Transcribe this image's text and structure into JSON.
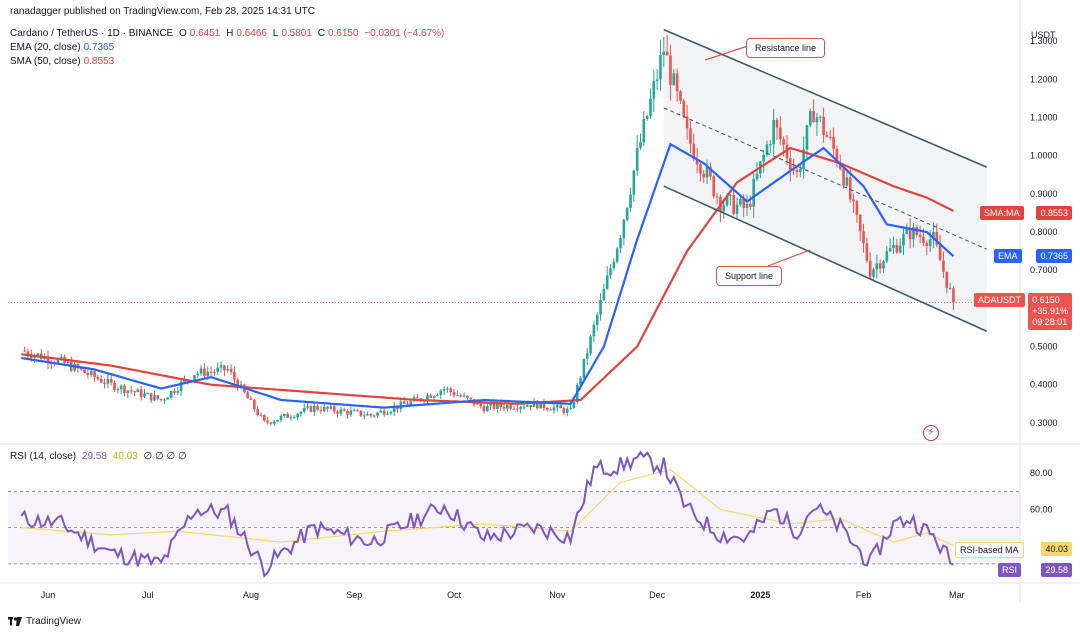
{
  "header": {
    "line1": "ranadagger published on TradingView.com, Feb 28, 2025 14:31 UTC",
    "symbol": "Cardano / TetherUS · 1D · BINANCE",
    "o_label": "O",
    "o_value": "0.6451",
    "h_label": "H",
    "h_value": "0.6466",
    "l_label": "L",
    "l_value": "0.5801",
    "c_label": "C",
    "c_value": "0.6150",
    "change": "−0.0301 (−4.67%)",
    "ema_label": "EMA (20, close)",
    "ema_value": "0.7365",
    "sma_label": "SMA (50, close)",
    "sma_value": "0.8553",
    "rsi_label": "RSI (14, close)",
    "rsi_value": "29.58",
    "rsi_ma_value": "40.03",
    "rsi_extra": "∅ ∅ ∅ ∅"
  },
  "currency": "USDT",
  "annotations": {
    "resistance": "Resistance line",
    "support": "Support line"
  },
  "tags": {
    "sma": {
      "label": "SMA:MA",
      "value": "0.8553"
    },
    "ema": {
      "label": "EMA",
      "value": "0.7365"
    },
    "price": {
      "label": "ADAUSDT",
      "value": "0.6150",
      "change": "+35.91%",
      "countdown": "09:28:01"
    },
    "rsi_ma": {
      "label": "RSI-based MA",
      "value": "40.03"
    },
    "rsi": {
      "label": "RSI",
      "value": "29.58"
    }
  },
  "logo_text": "TradingView",
  "colors": {
    "up": "#26a69a",
    "down": "#ef5350",
    "ema": "#2962ff",
    "sma": "#e0443e",
    "rsi": "#7e57c2",
    "rsi_ma": "#f5d76e",
    "channel": "#3d5a6c"
  },
  "chart_data": {
    "type": "candlestick",
    "title": "Cardano / TetherUS · 1D · BINANCE",
    "ylim": [
      0.25,
      1.35
    ],
    "y_ticks": [
      "1.3000",
      "1.2000",
      "1.1000",
      "1.0000",
      "0.9000",
      "0.8000",
      "0.7000",
      "0.6000",
      "0.5000",
      "0.4000",
      "0.3000"
    ],
    "x_ticks": [
      "Jun",
      "Jul",
      "Aug",
      "Sep",
      "Oct",
      "Nov",
      "Dec",
      "2025",
      "Feb",
      "Mar"
    ],
    "price_anchors": [
      [
        "2024-05-24",
        0.49
      ],
      [
        "2024-06-05",
        0.46
      ],
      [
        "2024-06-20",
        0.4
      ],
      [
        "2024-07-05",
        0.36
      ],
      [
        "2024-07-15",
        0.43
      ],
      [
        "2024-07-25",
        0.44
      ],
      [
        "2024-08-05",
        0.3
      ],
      [
        "2024-08-20",
        0.34
      ],
      [
        "2024-09-06",
        0.32
      ],
      [
        "2024-09-20",
        0.36
      ],
      [
        "2024-09-28",
        0.39
      ],
      [
        "2024-10-10",
        0.34
      ],
      [
        "2024-10-25",
        0.35
      ],
      [
        "2024-11-05",
        0.33
      ],
      [
        "2024-11-12",
        0.55
      ],
      [
        "2024-11-20",
        0.8
      ],
      [
        "2024-11-25",
        1.0
      ],
      [
        "2024-12-03",
        1.28
      ],
      [
        "2024-12-10",
        1.05
      ],
      [
        "2024-12-20",
        0.88
      ],
      [
        "2024-12-28",
        0.86
      ],
      [
        "2025-01-05",
        1.08
      ],
      [
        "2025-01-12",
        0.95
      ],
      [
        "2025-01-17",
        1.12
      ],
      [
        "2025-01-25",
        0.98
      ],
      [
        "2025-02-03",
        0.7
      ],
      [
        "2025-02-10",
        0.76
      ],
      [
        "2025-02-15",
        0.8
      ],
      [
        "2025-02-22",
        0.78
      ],
      [
        "2025-02-28",
        0.615
      ]
    ],
    "ema20_anchors": [
      [
        "2024-05-24",
        0.47
      ],
      [
        "2024-06-15",
        0.44
      ],
      [
        "2024-07-05",
        0.39
      ],
      [
        "2024-07-20",
        0.42
      ],
      [
        "2024-08-10",
        0.36
      ],
      [
        "2024-09-10",
        0.34
      ],
      [
        "2024-10-10",
        0.36
      ],
      [
        "2024-11-05",
        0.35
      ],
      [
        "2024-11-15",
        0.5
      ],
      [
        "2024-11-25",
        0.78
      ],
      [
        "2024-12-05",
        1.03
      ],
      [
        "2024-12-15",
        0.98
      ],
      [
        "2024-12-28",
        0.88
      ],
      [
        "2025-01-10",
        0.96
      ],
      [
        "2025-01-20",
        1.02
      ],
      [
        "2025-02-01",
        0.92
      ],
      [
        "2025-02-08",
        0.82
      ],
      [
        "2025-02-20",
        0.8
      ],
      [
        "2025-02-28",
        0.7365
      ]
    ],
    "sma50_anchors": [
      [
        "2024-05-24",
        0.48
      ],
      [
        "2024-06-20",
        0.45
      ],
      [
        "2024-07-20",
        0.4
      ],
      [
        "2024-08-20",
        0.38
      ],
      [
        "2024-09-20",
        0.36
      ],
      [
        "2024-10-20",
        0.35
      ],
      [
        "2024-11-08",
        0.36
      ],
      [
        "2024-11-25",
        0.5
      ],
      [
        "2024-12-10",
        0.75
      ],
      [
        "2024-12-25",
        0.93
      ],
      [
        "2025-01-10",
        1.02
      ],
      [
        "2025-01-25",
        0.98
      ],
      [
        "2025-02-10",
        0.92
      ],
      [
        "2025-02-20",
        0.89
      ],
      [
        "2025-02-28",
        0.8553
      ]
    ],
    "resistance_line": [
      [
        "2024-12-03",
        1.33
      ],
      [
        "2025-03-10",
        0.97
      ]
    ],
    "support_line": [
      [
        "2024-12-03",
        0.92
      ],
      [
        "2025-03-10",
        0.54
      ]
    ],
    "mid_line": [
      [
        "2024-12-03",
        1.125
      ],
      [
        "2025-03-10",
        0.755
      ]
    ],
    "current_price": 0.615,
    "rsi": {
      "ylim": [
        20,
        95
      ],
      "y_ticks": [
        "80.00",
        "60.00"
      ],
      "levels": [
        70,
        50,
        30
      ],
      "rsi_anchors": [
        [
          "2024-05-24",
          55
        ],
        [
          "2024-06-05",
          52
        ],
        [
          "2024-06-20",
          36
        ],
        [
          "2024-07-05",
          30
        ],
        [
          "2024-07-15",
          60
        ],
        [
          "2024-07-25",
          58
        ],
        [
          "2024-08-05",
          28
        ],
        [
          "2024-08-20",
          50
        ],
        [
          "2024-09-06",
          42
        ],
        [
          "2024-09-20",
          55
        ],
        [
          "2024-09-28",
          62
        ],
        [
          "2024-10-10",
          44
        ],
        [
          "2024-10-25",
          50
        ],
        [
          "2024-11-05",
          45
        ],
        [
          "2024-11-12",
          82
        ],
        [
          "2024-11-20",
          84
        ],
        [
          "2024-11-25",
          88
        ],
        [
          "2024-12-03",
          84
        ],
        [
          "2024-12-10",
          60
        ],
        [
          "2024-12-20",
          46
        ],
        [
          "2024-12-28",
          44
        ],
        [
          "2025-01-05",
          60
        ],
        [
          "2025-01-12",
          48
        ],
        [
          "2025-01-17",
          62
        ],
        [
          "2025-01-25",
          50
        ],
        [
          "2025-02-03",
          30
        ],
        [
          "2025-02-10",
          52
        ],
        [
          "2025-02-15",
          55
        ],
        [
          "2025-02-22",
          45
        ],
        [
          "2025-02-28",
          29.58
        ]
      ],
      "ma_anchors": [
        [
          "2024-05-24",
          50
        ],
        [
          "2024-06-20",
          46
        ],
        [
          "2024-07-10",
          48
        ],
        [
          "2024-08-10",
          42
        ],
        [
          "2024-09-10",
          48
        ],
        [
          "2024-10-10",
          52
        ],
        [
          "2024-11-05",
          48
        ],
        [
          "2024-11-20",
          75
        ],
        [
          "2024-12-05",
          82
        ],
        [
          "2024-12-20",
          60
        ],
        [
          "2025-01-10",
          52
        ],
        [
          "2025-01-25",
          55
        ],
        [
          "2025-02-10",
          42
        ],
        [
          "2025-02-20",
          47
        ],
        [
          "2025-02-28",
          40.03
        ]
      ]
    }
  }
}
